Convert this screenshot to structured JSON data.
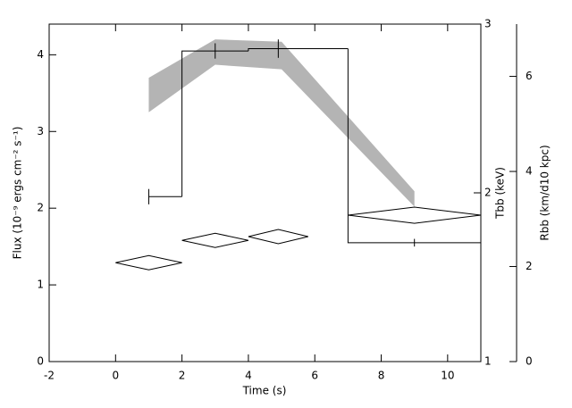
{
  "chart_data": {
    "type": "line",
    "xlabel": "Time (s)",
    "ylabel": "Flux (10⁻⁹ ergs cm⁻² s⁻¹)",
    "y2label": "Tbb (keV)",
    "y3label": "Rbb (km/d10 kpc)",
    "xlim": [
      -2,
      11
    ],
    "xticks": [
      -2,
      0,
      2,
      4,
      6,
      8,
      10
    ],
    "ylim": [
      0,
      4.4
    ],
    "yticks": [
      0,
      1,
      2,
      3,
      4
    ],
    "y2lim": [
      1,
      3
    ],
    "y2ticks": [
      1,
      2,
      3
    ],
    "y3lim": [
      0,
      7.1
    ],
    "y3ticks": [
      0,
      2,
      4,
      6
    ],
    "series": [
      {
        "type": "band",
        "color": "#b4b4b4",
        "x": [
          1,
          3,
          5,
          9
        ],
        "lower": [
          3.25,
          3.87,
          3.81,
          2.02
        ],
        "upper": [
          3.7,
          4.2,
          4.17,
          2.22
        ]
      },
      {
        "type": "step",
        "color": "#000000",
        "bins": [
          1,
          2,
          4,
          7,
          11
        ],
        "values": [
          2.15,
          4.05,
          4.08,
          1.55
        ]
      },
      {
        "type": "errorbar",
        "color": "#000000",
        "x": [
          1,
          3,
          4.9,
          9
        ],
        "values": [
          2.15,
          4.05,
          4.08,
          1.55
        ],
        "err": [
          0.1,
          0.1,
          0.12,
          0.05
        ]
      },
      {
        "type": "diamond",
        "axis": "y3",
        "color": "#000000",
        "x": [
          1,
          3,
          4.9,
          9
        ],
        "xerr": [
          1,
          1,
          0.9,
          2
        ],
        "values": [
          2.08,
          2.55,
          2.63,
          3.08
        ],
        "yerr": [
          0.15,
          0.15,
          0.15,
          0.17
        ]
      }
    ]
  }
}
